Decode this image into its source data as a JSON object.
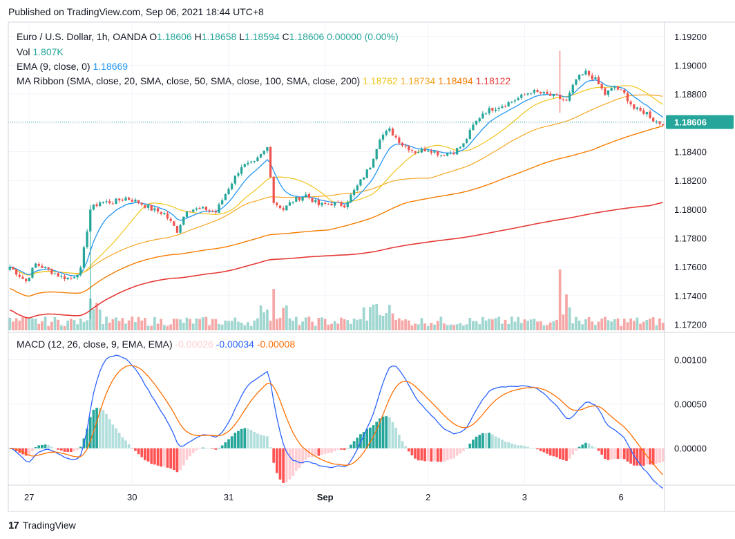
{
  "header": {
    "published": "Published on TradingView.com, Sep 06, 2021 18:44 UTC+8"
  },
  "footer": {
    "logo_text": "17",
    "brand": "TradingView"
  },
  "legend": {
    "title": "Euro / U.S. Dollar, 1h, OANDA",
    "o_label": "O",
    "o_value": "1.18606",
    "h_label": "H",
    "h_value": "1.18658",
    "l_label": "L",
    "l_value": "1.18594",
    "c_label": "C",
    "c_value": "1.18606",
    "change": "0.00000 (0.00%)",
    "vol_label": "Vol",
    "vol_value": "1.807K",
    "ema_label": "EMA (9, close, 0)",
    "ema_value": "1.18669",
    "ribbon_label": "MA Ribbon (SMA, close, 20, SMA, close, 50, SMA, close, 100, SMA, close, 200)",
    "ribbon_values": [
      "1.18762",
      "1.18734",
      "1.18494",
      "1.18122"
    ],
    "macd_label": "MACD (12, 26, close, 9, EMA, EMA)",
    "macd_values": [
      "-0.00026",
      "-0.00034",
      "-0.00008"
    ]
  },
  "colors": {
    "up": "#26a69a",
    "down": "#ef5350",
    "up_vol": "#9fd6cf",
    "down_vol": "#f5a7a6",
    "ema": "#2196f3",
    "sma20": "#f0c419",
    "sma50": "#f5a623",
    "sma100": "#f57c00",
    "sma200": "#e53935",
    "macd_line": "#2962ff",
    "signal_line": "#ff6d00",
    "hist_up_strong": "#26a69a",
    "hist_up_weak": "#b2dfdb",
    "hist_down_strong": "#ff5252",
    "hist_down_weak": "#ffcdd2",
    "last_price_bg": "#26a69a",
    "grid": "#f0f3fa"
  },
  "chart_data": [
    {
      "type": "candlestick",
      "title": "Euro / U.S. Dollar, 1h, OANDA",
      "ylim": [
        1.1715,
        1.193
      ],
      "y_ticks": [
        "1.19200",
        "1.19000",
        "1.18800",
        "1.18600",
        "1.18400",
        "1.18200",
        "1.18000",
        "1.17800",
        "1.17600",
        "1.17400",
        "1.17200"
      ],
      "last_price": "1.18606",
      "x_ticks": [
        "27",
        "30",
        "31",
        "Sep",
        "2",
        "3",
        "6"
      ],
      "anchors": [
        [
          0,
          1.176
        ],
        [
          5,
          1.175
        ],
        [
          8,
          1.1762
        ],
        [
          12,
          1.1758
        ],
        [
          16,
          1.1753
        ],
        [
          19,
          1.1752
        ],
        [
          22,
          1.1758
        ],
        [
          25,
          1.18
        ],
        [
          28,
          1.1805
        ],
        [
          32,
          1.1805
        ],
        [
          36,
          1.1808
        ],
        [
          40,
          1.1805
        ],
        [
          44,
          1.18
        ],
        [
          48,
          1.1797
        ],
        [
          52,
          1.1785
        ],
        [
          55,
          1.18
        ],
        [
          58,
          1.18
        ],
        [
          61,
          1.18
        ],
        [
          64,
          1.1798
        ],
        [
          68,
          1.1815
        ],
        [
          72,
          1.183
        ],
        [
          76,
          1.1832
        ],
        [
          80,
          1.1843
        ],
        [
          82,
          1.1805
        ],
        [
          85,
          1.18
        ],
        [
          88,
          1.1806
        ],
        [
          92,
          1.181
        ],
        [
          96,
          1.1803
        ],
        [
          100,
          1.1804
        ],
        [
          104,
          1.1803
        ],
        [
          108,
          1.1816
        ],
        [
          112,
          1.183
        ],
        [
          115,
          1.185
        ],
        [
          118,
          1.1855
        ],
        [
          122,
          1.1845
        ],
        [
          126,
          1.184
        ],
        [
          130,
          1.1842
        ],
        [
          134,
          1.1838
        ],
        [
          138,
          1.184
        ],
        [
          141,
          1.1845
        ],
        [
          144,
          1.1858
        ],
        [
          147,
          1.1867
        ],
        [
          150,
          1.187
        ],
        [
          154,
          1.1873
        ],
        [
          158,
          1.1877
        ],
        [
          162,
          1.1882
        ],
        [
          166,
          1.188
        ],
        [
          170,
          1.1878
        ],
        [
          173,
          1.1875
        ],
        [
          176,
          1.189
        ],
        [
          179,
          1.1895
        ],
        [
          182,
          1.189
        ],
        [
          185,
          1.188
        ],
        [
          188,
          1.1885
        ],
        [
          191,
          1.188
        ],
        [
          194,
          1.187
        ],
        [
          196,
          1.1868
        ],
        [
          198,
          1.1867
        ],
        [
          200,
          1.1862
        ],
        [
          202,
          1.186
        ]
      ],
      "ema_last": 1.18669,
      "ma_ribbon_last": [
        1.18762,
        1.18734,
        1.18494,
        1.18122
      ]
    },
    {
      "type": "histogram",
      "title": "MACD (12, 26, close, 9, EMA, EMA)",
      "ylim": [
        -0.0004,
        0.0013
      ],
      "y_ticks": [
        "0.00100",
        "0.00050",
        "0.00000"
      ],
      "values_last": {
        "histogram": -0.00026,
        "macd": -0.00034,
        "signal": -8e-05
      }
    }
  ]
}
